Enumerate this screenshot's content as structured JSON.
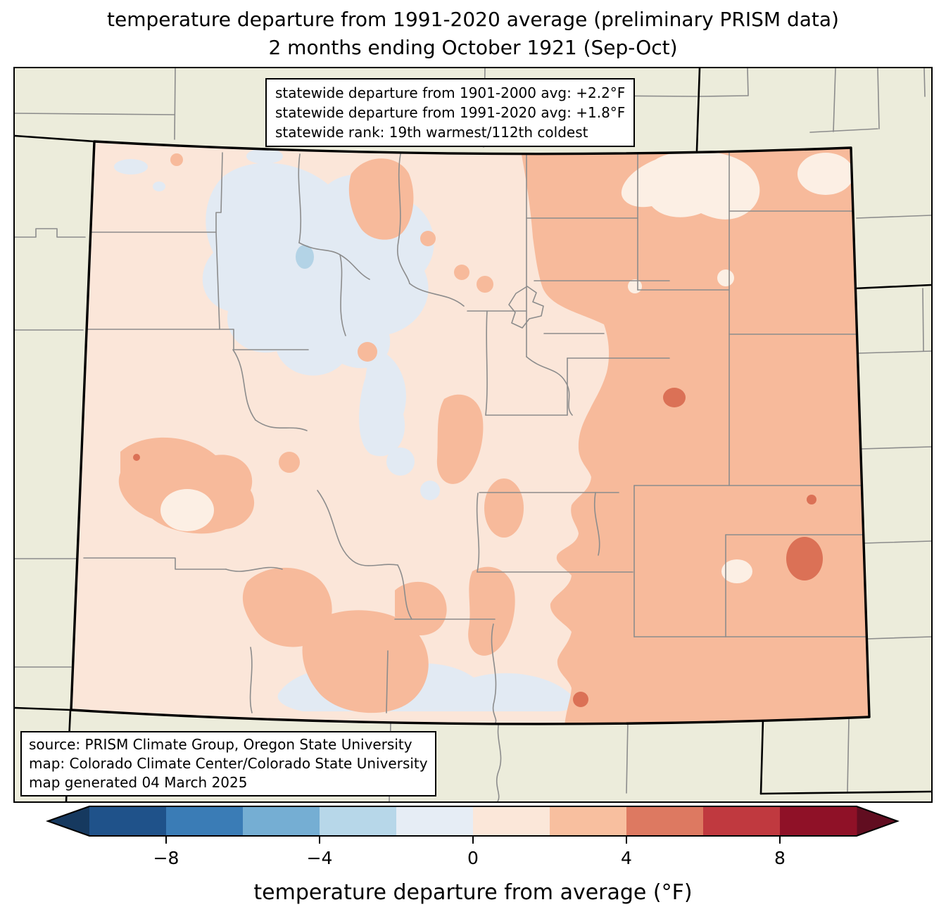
{
  "title": {
    "line1": "temperature departure from 1991-2020 average (preliminary PRISM data)",
    "line2": "2 months ending October 1921 (Sep-Oct)"
  },
  "stats_box": {
    "lines": [
      "statewide departure from 1901-2000 avg: +2.2°F",
      "statewide departure from 1991-2020 avg: +1.8°F",
      "statewide rank: 19th warmest/112th coldest"
    ]
  },
  "source_box": {
    "lines": [
      "source: PRISM Climate Group, Oregon State University",
      "map: Colorado Climate Center/Colorado State University",
      "map generated 04 March 2025"
    ]
  },
  "colorbar": {
    "label": "temperature departure from average (°F)",
    "unit": "°F",
    "range_min": -10,
    "range_max": 10,
    "bin_size": 2,
    "ticks": [
      "−8",
      "−4",
      "0",
      "4",
      "8"
    ],
    "tick_values": [
      -8,
      -4,
      0,
      4,
      8
    ],
    "segment_colors": [
      "#1f528a",
      "#3a7cb6",
      "#75aed3",
      "#b7d7e9",
      "#e6edf5",
      "#fbe7d9",
      "#f8bf9f",
      "#dd7961",
      "#c0393f",
      "#8f1127"
    ],
    "left_arrow_color": "#16395f",
    "right_arrow_color": "#610d20"
  },
  "map": {
    "region": "Colorado",
    "projection_note": "state map with county boundaries, neighboring states in beige",
    "fill_legend": [
      {
        "range": "-4 to -2 °F",
        "color": "#b3d3e6"
      },
      {
        "range": "-2 to 0 °F",
        "color": "#e2eaf3"
      },
      {
        "range": "0 to +2 °F",
        "color": "#fbe6d9"
      },
      {
        "range": "0 to +2 °F (light patches)",
        "color": "#fcefe4"
      },
      {
        "range": "+2 to +4 °F",
        "color": "#f7ba9b"
      },
      {
        "range": "+4 to +6 °F",
        "color": "#db7156"
      }
    ],
    "outside_color": "#ececdb",
    "county_line_color": "#8c8c8c",
    "state_line_color": "#000000"
  },
  "palette": {
    "outside": "#ececdb",
    "base": "#fbe6d9",
    "salmon": "#f7ba9b",
    "coral": "#db7156",
    "light": "#fcefe4",
    "bluepale": "#e2eaf3",
    "bluemed": "#b3d3e6",
    "county": "#8c8c8c",
    "state": "#000000"
  }
}
